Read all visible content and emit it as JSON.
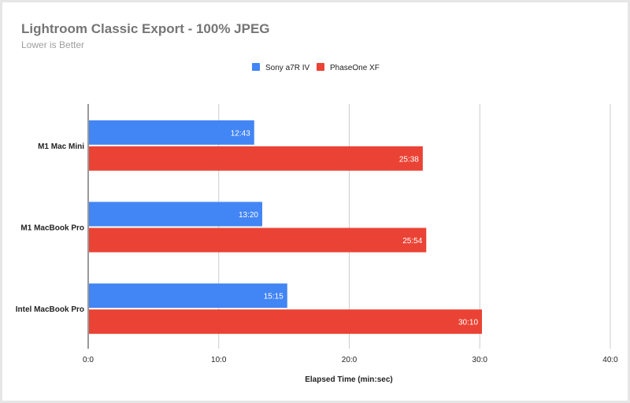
{
  "chart_data": {
    "type": "bar",
    "orientation": "horizontal",
    "title": "Lightroom Classic Export - 100% JPEG",
    "subtitle": "Lower is Better",
    "xlabel": "Elapsed Time (min:sec)",
    "ylabel": "",
    "categories": [
      "M1 Mac Mini",
      "M1 MacBook Pro",
      "Intel MacBook Pro"
    ],
    "series": [
      {
        "name": "Sony a7R IV",
        "color": "#4285f4",
        "values": [
          12.717,
          13.333,
          15.25
        ],
        "labels": [
          "12:43",
          "13:20",
          "15:15"
        ]
      },
      {
        "name": "PhaseOne XF",
        "color": "#ea4335",
        "values": [
          25.633,
          25.9,
          30.167
        ],
        "labels": [
          "25:38",
          "25:54",
          "30:10"
        ]
      }
    ],
    "xlim": [
      0,
      40
    ],
    "xticks": [
      0,
      10,
      20,
      30,
      40
    ],
    "xtick_labels": [
      "0:0",
      "10:0",
      "20:0",
      "30:0",
      "40:0"
    ],
    "grid": true,
    "legend": "top-center"
  }
}
